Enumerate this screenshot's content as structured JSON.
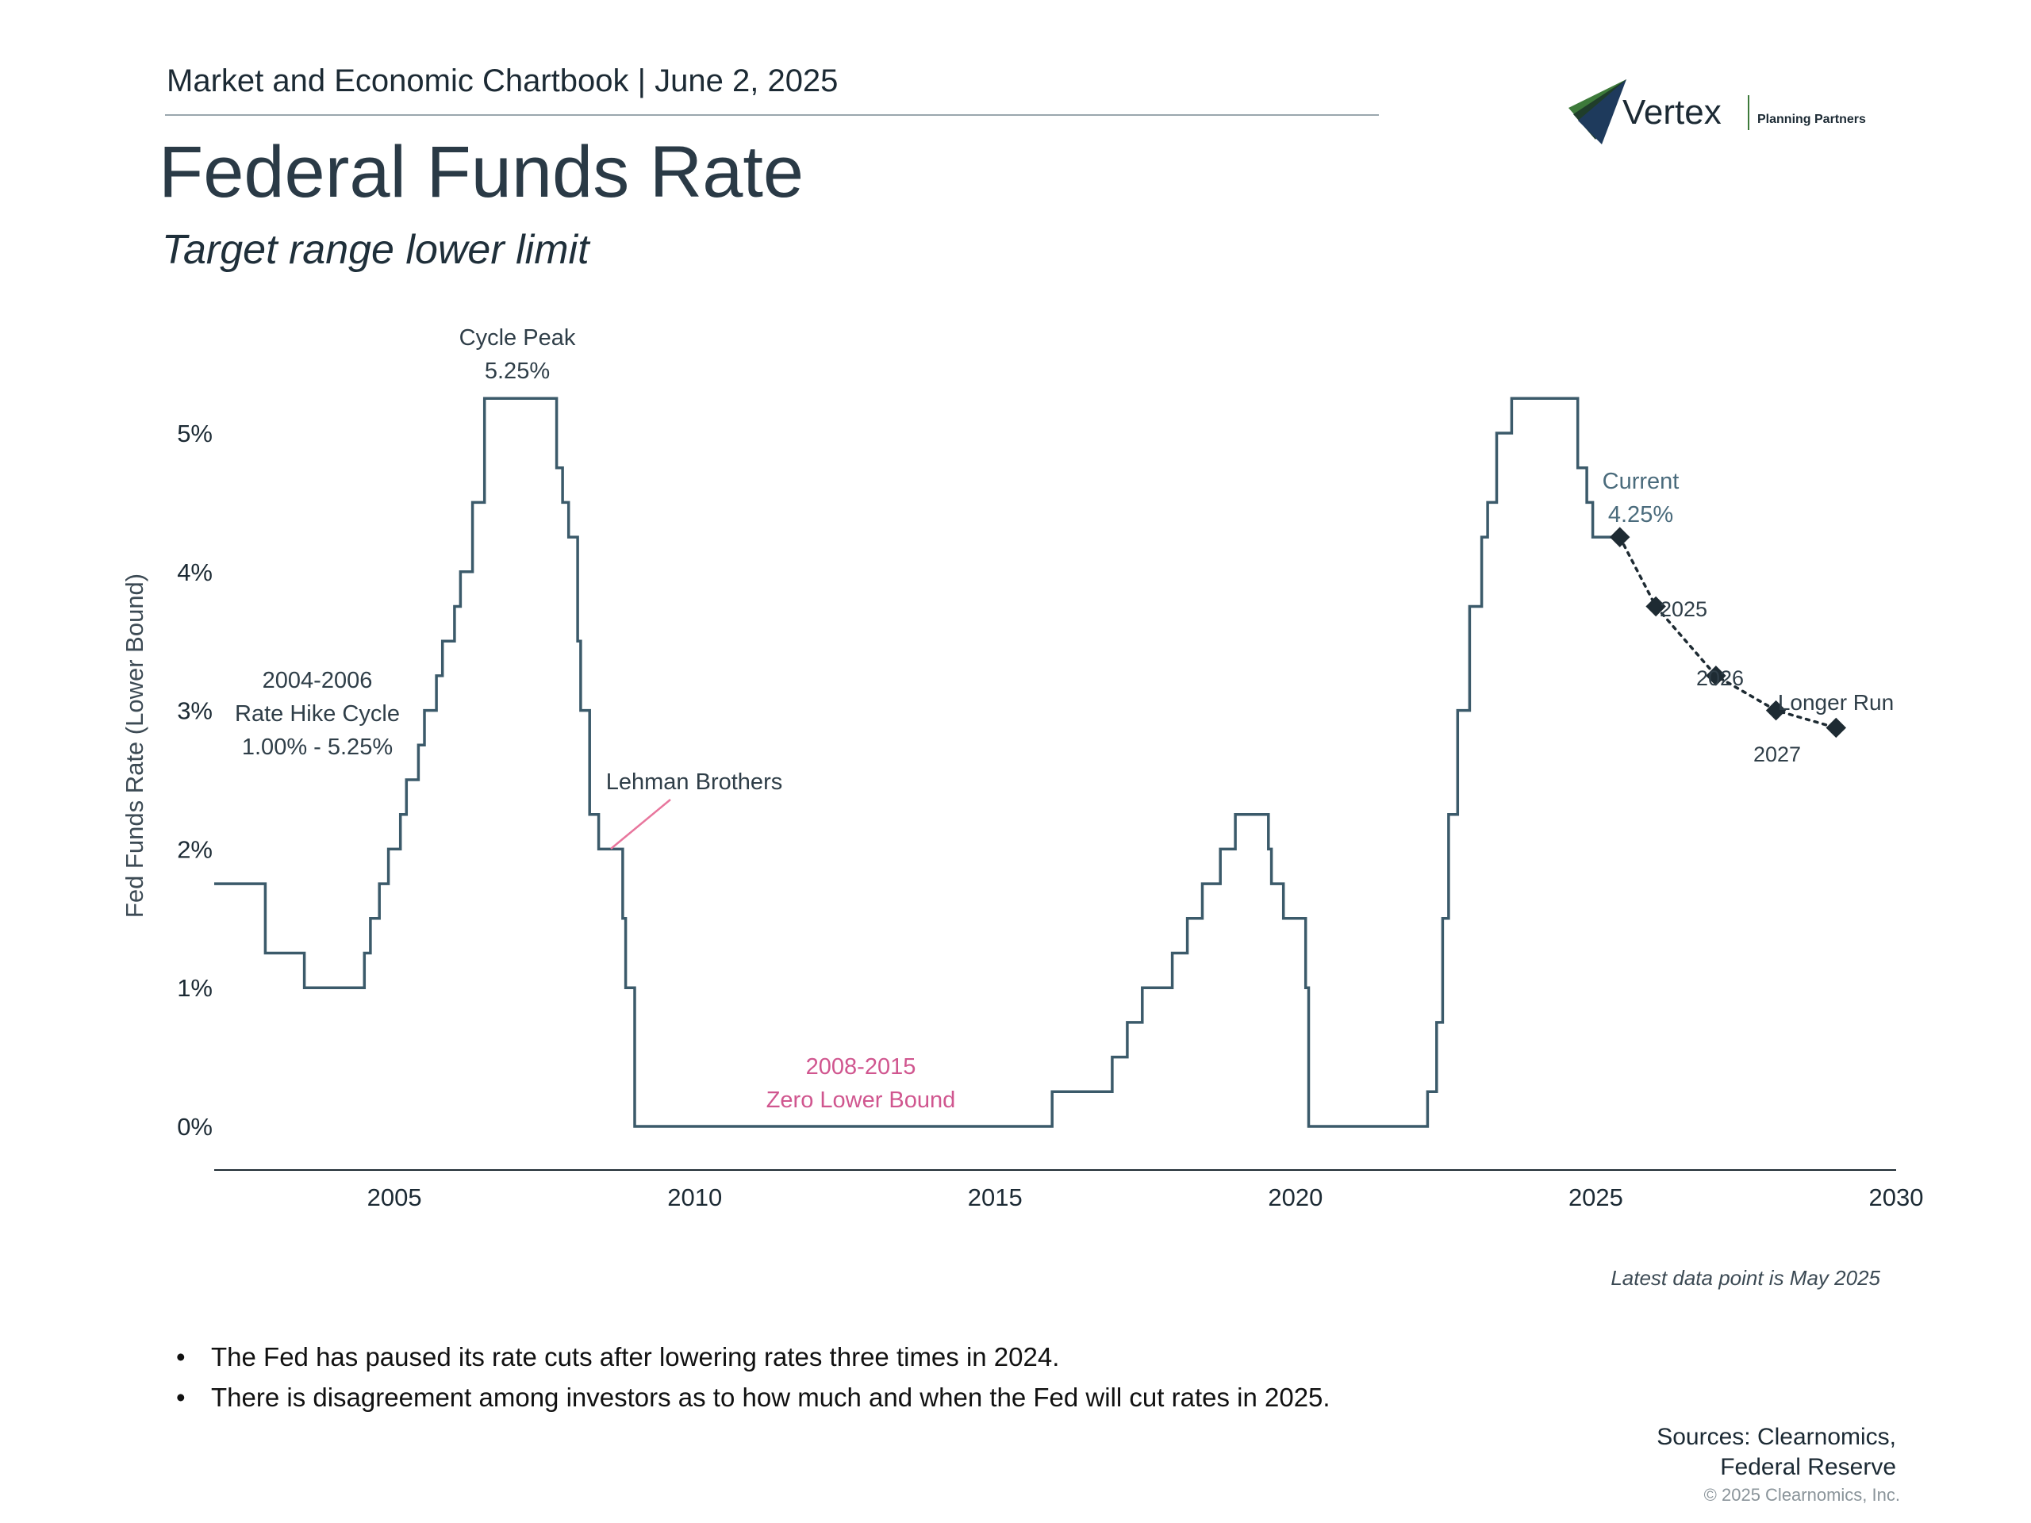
{
  "header": {
    "title": "Market and Economic Chartbook | June 2, 2025"
  },
  "page_title": "Federal Funds Rate",
  "page_subtitle": "Target range lower limit",
  "logo": {
    "name": "Vertex",
    "tagline": "Planning Partners",
    "icon": "vertex-swoosh-icon"
  },
  "chart_data": {
    "type": "line",
    "title": "Federal Funds Rate",
    "subtitle": "Target range lower limit",
    "ylabel": "Fed Funds Rate (Lower Bound)",
    "xlabel": "",
    "xlim": [
      2002,
      2030
    ],
    "ylim": [
      0,
      5.5
    ],
    "x_ticks": [
      2005,
      2010,
      2015,
      2020,
      2025,
      2030
    ],
    "y_ticks": [
      0,
      1,
      2,
      3,
      4,
      5
    ],
    "y_tick_labels": [
      "0%",
      "1%",
      "2%",
      "3%",
      "4%",
      "5%"
    ],
    "grid": false,
    "colors": {
      "line": "#3b5a6a",
      "projection": "#1e2b33",
      "zero_bound": "#d0568f",
      "lehman_arrow": "#e8769d",
      "axis": "#1e2b33"
    },
    "series": [
      {
        "style": "step",
        "x": [
          2002.0,
          2002.85,
          2003.5,
          2004.5,
          2004.6,
          2004.75,
          2004.9,
          2005.1,
          2005.2,
          2005.4,
          2005.5,
          2005.7,
          2005.8,
          2006.0,
          2006.1,
          2006.3,
          2006.5,
          2007.7,
          2007.8,
          2007.9,
          2008.05,
          2008.1,
          2008.25,
          2008.4,
          2008.8,
          2008.85,
          2009.0,
          2015.95,
          2016.95,
          2017.2,
          2017.45,
          2017.95,
          2018.2,
          2018.45,
          2018.75,
          2019.0,
          2019.55,
          2019.6,
          2019.8,
          2020.17,
          2020.22,
          2022.2,
          2022.35,
          2022.45,
          2022.55,
          2022.7,
          2022.9,
          2023.1,
          2023.2,
          2023.35,
          2023.6,
          2024.7,
          2024.85,
          2024.95,
          2025.4
        ],
        "values": [
          1.75,
          1.25,
          1.0,
          1.25,
          1.5,
          1.75,
          2.0,
          2.25,
          2.5,
          2.75,
          3.0,
          3.25,
          3.5,
          3.75,
          4.0,
          4.5,
          5.25,
          4.75,
          4.5,
          4.25,
          3.5,
          3.0,
          2.25,
          2.0,
          1.5,
          1.0,
          0.0,
          0.25,
          0.5,
          0.75,
          1.0,
          1.25,
          1.5,
          1.75,
          2.0,
          2.25,
          2.0,
          1.75,
          1.5,
          1.0,
          0.0,
          0.25,
          0.75,
          1.5,
          2.25,
          3.0,
          3.75,
          4.25,
          4.5,
          5.0,
          5.25,
          4.75,
          4.5,
          4.25,
          4.25
        ]
      },
      {
        "style": "dotted-projection",
        "labels": [
          "Current",
          "2025",
          "2026",
          "2027",
          "Longer Run"
        ],
        "x": [
          2025.4,
          2026.0,
          2027.0,
          2028.0,
          2029.0
        ],
        "values": [
          4.25,
          3.75,
          3.25,
          3.0,
          2.875
        ]
      }
    ],
    "annotations": {
      "cycle_peak": {
        "title": "Cycle Peak",
        "value": "5.25%"
      },
      "hike_cycle": {
        "years": "2004-2006",
        "label": "Rate Hike Cycle",
        "range": "1.00% - 5.25%"
      },
      "lehman": {
        "label": "Lehman Brothers"
      },
      "zero_bound": {
        "years": "2008-2015",
        "label": "Zero Lower Bound"
      },
      "current": {
        "title": "Current",
        "value": "4.25%"
      },
      "proj_2025": "2025",
      "proj_2026": "2026",
      "proj_2027": "2027",
      "longer_run": "Longer Run"
    }
  },
  "latest_note": "Latest data point is May 2025",
  "bullets": [
    "The Fed has paused its rate cuts after lowering rates three times in 2024.",
    "There is disagreement among investors as to how much and when the Fed will cut rates in 2025."
  ],
  "sources": {
    "line1": "Sources: Clearnomics,",
    "line2": "Federal Reserve"
  },
  "copyright": "© 2025 Clearnomics, Inc."
}
